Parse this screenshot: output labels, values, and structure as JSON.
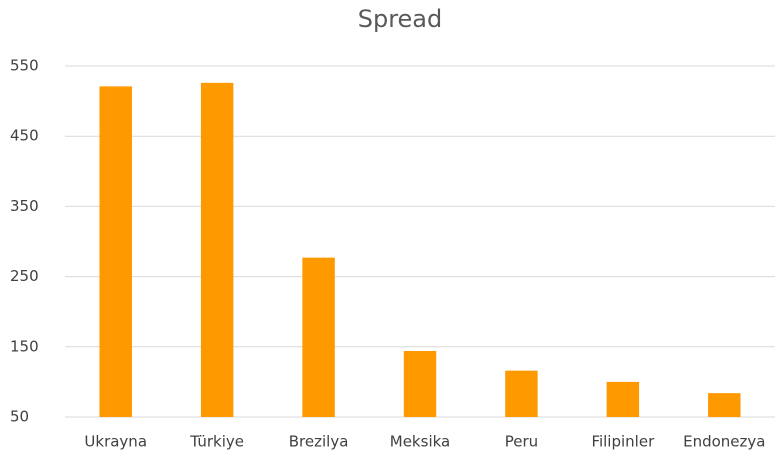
{
  "chart_data": {
    "type": "bar",
    "title": "Spread",
    "categories": [
      "Ukrayna",
      "Türkiye",
      "Brezilya",
      "Meksika",
      "Peru",
      "Filipinler",
      "Endonezya"
    ],
    "values": [
      521,
      526,
      277,
      144,
      116,
      100,
      84
    ],
    "color": "#ff9900",
    "ylim": [
      50,
      550
    ],
    "yticks": [
      50,
      150,
      250,
      350,
      450,
      550
    ],
    "grid": true
  }
}
